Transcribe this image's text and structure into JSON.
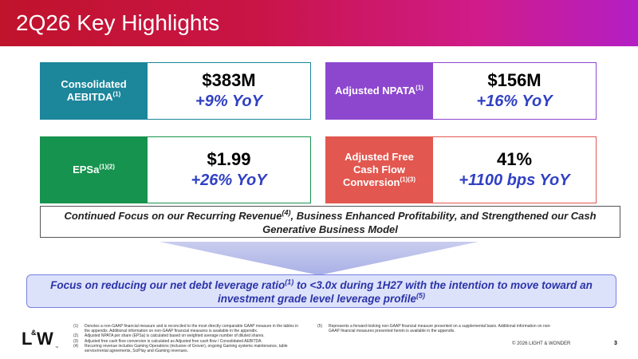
{
  "slide": {
    "title": "2Q26 Key Highlights"
  },
  "colors": {
    "teal": "#1c869b",
    "purple": "#8d47cf",
    "green": "#16934e",
    "red": "#e2574f",
    "yoy_blue": "#3040c4",
    "leverage_text": "#2b34a8"
  },
  "cards": {
    "aebitda": {
      "label": "Consolidated AEBITDA",
      "label_sup": "(1)",
      "value": "$383M",
      "yoy": "+9% YoY"
    },
    "npata": {
      "label": "Adjusted NPATA",
      "label_sup": "(1)",
      "value": "$156M",
      "yoy": "+16% YoY"
    },
    "epsa": {
      "label": "EPSa",
      "label_sup": "(1)(2)",
      "value": "$1.99",
      "yoy": "+26% YoY"
    },
    "fcf": {
      "label": "Adjusted Free Cash Flow Conversion",
      "label_sup": "(1)(3)",
      "value": "41%",
      "yoy": "+1100 bps YoY"
    }
  },
  "focus_statement": {
    "part1": "Continued Focus on our Recurring Revenue",
    "sup": "(4)",
    "part2": ", Business Enhanced Profitability, and Strengthened our Cash Generative Business Model"
  },
  "leverage_statement": {
    "part1": "Focus on reducing our net debt leverage ratio",
    "sup1": "(1)",
    "part2": " to <3.0x during 1H27 with the intention to move toward an investment grade level leverage profile",
    "sup2": "(5)"
  },
  "logo": {
    "text_l": "L",
    "text_amp": "&",
    "text_w": "W",
    "tm": "™"
  },
  "footnotes_left": [
    {
      "num": "(1)",
      "text": "Denotes a non-GAAP financial measure and is reconciled to the most directly comparable GAAP measure in the tables in the appendix. Additional information on non-GAAP financial measures is available in the appendix."
    },
    {
      "num": "(2)",
      "text": "Adjusted NPATA per share (EPSa) is calculated based on weighted average number of diluted shares."
    },
    {
      "num": "(3)",
      "text": "Adjusted free cash flow conversion is calculated as Adjusted free cash flow / Consolidated AEBITDA."
    },
    {
      "num": "(4)",
      "text": "Recurring revenue includes Gaming Operations (inclusive of Grover), ongoing Gaming systems maintenance, table service/rental agreements, SciPlay and iGaming revenues."
    }
  ],
  "footnotes_right": [
    {
      "num": "(5)",
      "text": "Represents a forward-looking non-GAAP financial measure presented on a supplemental basis. Additional information on non-GAAP financial measures presented herein is available in the appendix."
    }
  ],
  "footer": {
    "copyright": "© 2026 LIGHT & WONDER",
    "page": "3"
  }
}
